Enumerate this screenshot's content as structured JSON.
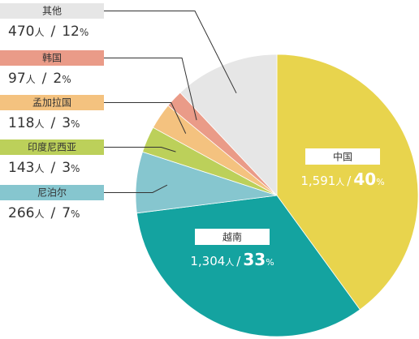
{
  "chart_data": {
    "type": "pie",
    "unit": "人",
    "slices": [
      {
        "name": "中国",
        "count": "1,591",
        "percent": 40,
        "color": "#e8d44d"
      },
      {
        "name": "越南",
        "count": "1,304",
        "percent": 33,
        "color": "#14a3a0"
      },
      {
        "name": "尼泊尔",
        "count": "266",
        "percent": 7,
        "color": "#86c6cf"
      },
      {
        "name": "印度尼西亚",
        "count": "143",
        "percent": 3,
        "color": "#bcd05a"
      },
      {
        "name": "孟加拉国",
        "count": "118",
        "percent": 3,
        "color": "#f4c27f"
      },
      {
        "name": "韩国",
        "count": "97",
        "percent": 2,
        "color": "#ea9b88"
      },
      {
        "name": "其他",
        "count": "470",
        "percent": 12,
        "color": "#e6e6e6"
      }
    ],
    "legend_placement": "left"
  }
}
